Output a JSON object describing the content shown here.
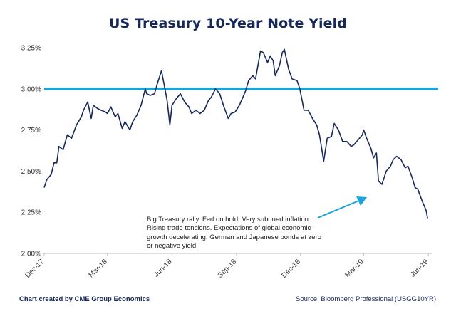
{
  "chart_data": {
    "type": "line",
    "title": "US Treasury 10-Year Note Yield",
    "ylim": [
      2.0,
      3.25
    ],
    "y_ticks": [
      "3.25%",
      "3.00%",
      "2.75%",
      "2.50%",
      "2.25%",
      "2.00%"
    ],
    "y_tick_values": [
      3.25,
      3.0,
      2.75,
      2.5,
      2.25,
      2.0
    ],
    "x_ticks": [
      "Dec-17",
      "Mar-18",
      "Jun-18",
      "Sep-18",
      "Dec-18",
      "Mar-19",
      "Jun-19"
    ],
    "x_tick_dates": [
      "2017-12-01",
      "2018-03-01",
      "2018-06-01",
      "2018-09-01",
      "2018-12-01",
      "2019-03-01",
      "2019-06-01"
    ],
    "xlim": [
      "2017-12-01",
      "2019-06-15"
    ],
    "reference_line": {
      "y": 3.0,
      "color": "#1aa3dc"
    },
    "grid": false,
    "series": [
      {
        "color": "#17285a",
        "x": [
          "2017-12-01",
          "2017-12-05",
          "2017-12-11",
          "2017-12-15",
          "2017-12-19",
          "2017-12-22",
          "2017-12-28",
          "2018-01-03",
          "2018-01-09",
          "2018-01-16",
          "2018-01-23",
          "2018-01-26",
          "2018-02-01",
          "2018-02-06",
          "2018-02-09",
          "2018-02-15",
          "2018-02-20",
          "2018-02-26",
          "2018-03-01",
          "2018-03-06",
          "2018-03-12",
          "2018-03-16",
          "2018-03-22",
          "2018-03-26",
          "2018-04-02",
          "2018-04-06",
          "2018-04-12",
          "2018-04-18",
          "2018-04-24",
          "2018-04-26",
          "2018-05-01",
          "2018-05-07",
          "2018-05-11",
          "2018-05-17",
          "2018-05-22",
          "2018-05-25",
          "2018-05-29",
          "2018-06-01",
          "2018-06-07",
          "2018-06-13",
          "2018-06-19",
          "2018-06-25",
          "2018-06-29",
          "2018-07-05",
          "2018-07-11",
          "2018-07-17",
          "2018-07-23",
          "2018-07-27",
          "2018-08-02",
          "2018-08-08",
          "2018-08-14",
          "2018-08-20",
          "2018-08-24",
          "2018-08-30",
          "2018-09-05",
          "2018-09-10",
          "2018-09-14",
          "2018-09-18",
          "2018-09-24",
          "2018-09-28",
          "2018-10-03",
          "2018-10-05",
          "2018-10-09",
          "2018-10-15",
          "2018-10-19",
          "2018-10-23",
          "2018-10-26",
          "2018-11-01",
          "2018-11-05",
          "2018-11-08",
          "2018-11-14",
          "2018-11-19",
          "2018-11-26",
          "2018-11-30",
          "2018-12-06",
          "2018-12-12",
          "2018-12-18",
          "2018-12-24",
          "2018-12-28",
          "2019-01-03",
          "2019-01-08",
          "2019-01-14",
          "2019-01-18",
          "2019-01-24",
          "2019-01-30",
          "2019-02-05",
          "2019-02-11",
          "2019-02-15",
          "2019-02-21",
          "2019-02-27",
          "2019-03-01",
          "2019-03-05",
          "2019-03-11",
          "2019-03-15",
          "2019-03-19",
          "2019-03-22",
          "2019-03-27",
          "2019-04-02",
          "2019-04-08",
          "2019-04-12",
          "2019-04-17",
          "2019-04-23",
          "2019-04-29",
          "2019-05-03",
          "2019-05-09",
          "2019-05-13",
          "2019-05-17",
          "2019-05-23",
          "2019-05-29",
          "2019-05-31"
        ],
        "y": [
          2.4,
          2.45,
          2.48,
          2.55,
          2.55,
          2.65,
          2.63,
          2.72,
          2.7,
          2.78,
          2.83,
          2.87,
          2.92,
          2.82,
          2.9,
          2.88,
          2.87,
          2.86,
          2.85,
          2.89,
          2.83,
          2.85,
          2.76,
          2.8,
          2.75,
          2.8,
          2.84,
          2.9,
          3.0,
          2.97,
          2.96,
          2.97,
          3.03,
          3.11,
          3.0,
          2.93,
          2.78,
          2.9,
          2.94,
          2.97,
          2.92,
          2.89,
          2.85,
          2.87,
          2.85,
          2.87,
          2.93,
          2.95,
          3.0,
          2.97,
          2.89,
          2.82,
          2.85,
          2.86,
          2.9,
          2.95,
          2.99,
          3.05,
          3.08,
          3.06,
          3.18,
          3.23,
          3.22,
          3.16,
          3.2,
          3.17,
          3.08,
          3.14,
          3.22,
          3.24,
          3.12,
          3.06,
          3.05,
          3.0,
          2.87,
          2.87,
          2.82,
          2.78,
          2.72,
          2.56,
          2.7,
          2.71,
          2.79,
          2.75,
          2.68,
          2.68,
          2.65,
          2.66,
          2.69,
          2.72,
          2.75,
          2.7,
          2.64,
          2.58,
          2.61,
          2.44,
          2.42,
          2.5,
          2.53,
          2.57,
          2.59,
          2.57,
          2.52,
          2.53,
          2.46,
          2.4,
          2.39,
          2.32,
          2.26,
          2.21
        ]
      }
    ]
  },
  "annotation": {
    "lines": [
      "Big Treasury rally. Fed on hold.  Very subdued inflation.",
      "Rising trade tensions. Expectations of global economic",
      "growth decelerating.  German and Japanese bonds at zero",
      "or negative yield."
    ]
  },
  "footer": {
    "credit": "Chart created by CME Group Economics",
    "source": "Source:  Bloomberg Professional (USGG10YR)"
  }
}
